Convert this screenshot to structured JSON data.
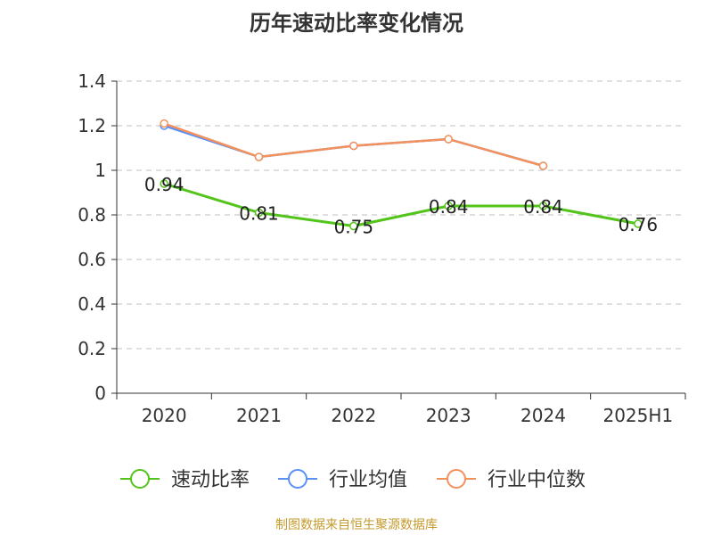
{
  "chart_data": {
    "type": "line",
    "title": "历年速动比率变化情况",
    "categories": [
      "2020",
      "2021",
      "2022",
      "2023",
      "2024",
      "2025H1"
    ],
    "y_ticks": [
      "0",
      "0.2",
      "0.4",
      "0.6",
      "0.8",
      "1",
      "1.2",
      "1.4"
    ],
    "ylim": [
      0,
      1.4
    ],
    "grid": true,
    "legend_position": "bottom",
    "series": [
      {
        "name": "速动比率",
        "color": "#52c41a",
        "values": [
          0.94,
          0.81,
          0.75,
          0.84,
          0.84,
          0.76
        ],
        "labels": [
          "0.94",
          "0.81",
          "0.75",
          "0.84",
          "0.84",
          "0.76"
        ]
      },
      {
        "name": "行业均值",
        "color": "#5b8ff9",
        "values": [
          1.2,
          1.06,
          1.11,
          1.14,
          1.02,
          null
        ]
      },
      {
        "name": "行业中位数",
        "color": "#f4915b",
        "values": [
          1.21,
          1.06,
          1.11,
          1.14,
          1.02,
          null
        ]
      }
    ],
    "source": "制图数据来自恒生聚源数据库"
  }
}
